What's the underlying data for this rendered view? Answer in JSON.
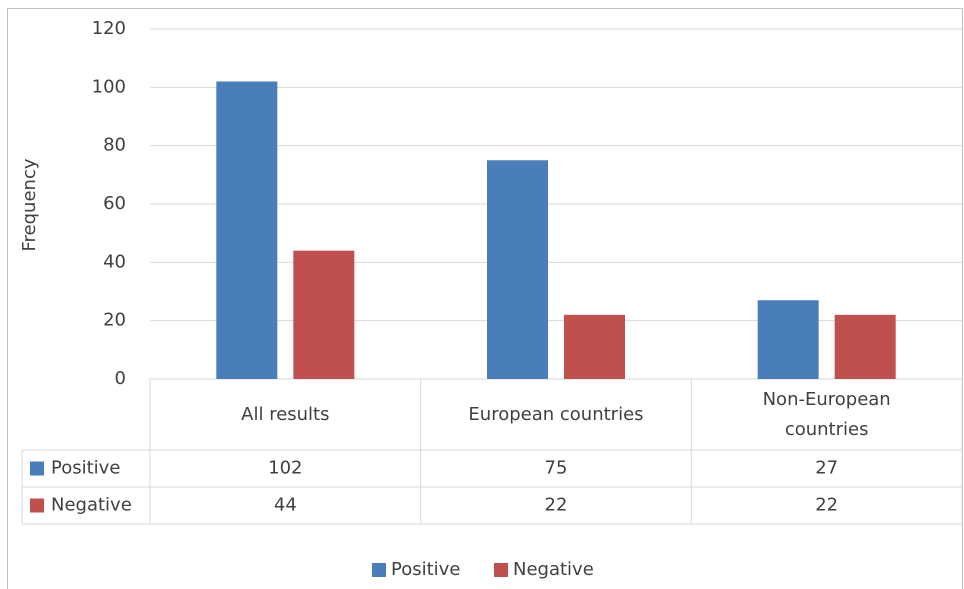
{
  "chart_data": {
    "type": "bar",
    "y_label": "Frequency",
    "categories": [
      "All results",
      "European countries",
      "Non-European countries"
    ],
    "series": [
      {
        "name": "Positive",
        "color": "#4a7ebb",
        "values": [
          102,
          75,
          27
        ]
      },
      {
        "name": "Negative",
        "color": "#c0504d",
        "values": [
          44,
          22,
          22
        ]
      }
    ],
    "ylim": [
      0,
      120
    ],
    "yticks": [
      0,
      20,
      40,
      60,
      80,
      100,
      120
    ],
    "grid": true,
    "legend": "bottom",
    "data_table": true
  }
}
